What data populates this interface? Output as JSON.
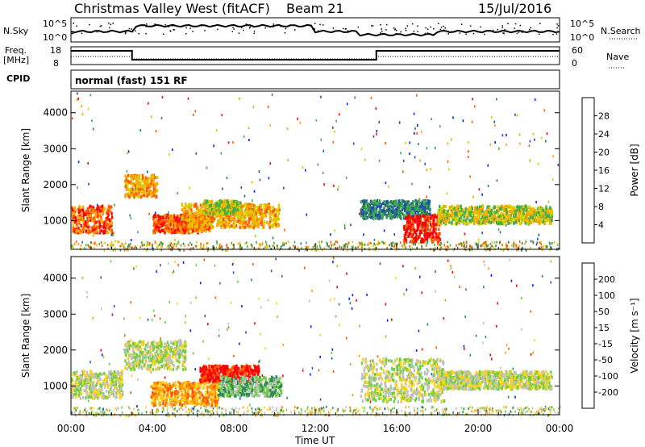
{
  "header": {
    "station": "Christmas Valley West (fitACF)",
    "beam": "Beam 21",
    "date": "15/Jul/2016"
  },
  "panels": {
    "nsky_label": "N.Sky",
    "nsky_ticks": [
      "10^5",
      "10^0"
    ],
    "nsearch_label": "N.Search",
    "nsearch_ticks": [
      "10^5",
      "10^0"
    ],
    "freq_label_line1": "Freq.",
    "freq_label_line2": "[MHz]",
    "freq_ticks": [
      "18",
      "8"
    ],
    "nave_label": "Nave",
    "nave_ticks": [
      "60",
      "0"
    ],
    "cpid_label": "CPID",
    "cpid_text": "normal (fast) 151 RF"
  },
  "chart_data": [
    {
      "type": "heatmap",
      "name": "power",
      "ylabel": "Slant Range [km]",
      "yticks": [
        "1000",
        "2000",
        "3000",
        "4000"
      ],
      "ylim": [
        200,
        4600
      ],
      "colorbar_label": "Power [dB]",
      "colorbar_ticks": [
        "4",
        "8",
        "12",
        "16",
        "20",
        "24",
        "28"
      ],
      "colors": [
        "#0022ff",
        "#1e4fb0",
        "#2d7d58",
        "#3fae4b",
        "#d2d200",
        "#ffa500",
        "#ff5a00",
        "#ff0000"
      ],
      "features": [
        {
          "t0": 0.0,
          "t1": 2.0,
          "r0": 700,
          "r1": 1450,
          "level": 6
        },
        {
          "t0": 2.6,
          "t1": 4.2,
          "r0": 1700,
          "r1": 2300,
          "level": 5
        },
        {
          "t0": 4.0,
          "t1": 6.8,
          "r0": 700,
          "r1": 1200,
          "level": 6
        },
        {
          "t0": 5.4,
          "t1": 10.2,
          "r0": 850,
          "r1": 1500,
          "level": 5
        },
        {
          "t0": 6.5,
          "t1": 8.3,
          "r0": 1200,
          "r1": 1600,
          "level": 4
        },
        {
          "t0": 14.2,
          "t1": 17.6,
          "r0": 1100,
          "r1": 1600,
          "level": 2
        },
        {
          "t0": 16.3,
          "t1": 18.1,
          "r0": 450,
          "r1": 1200,
          "level": 7
        },
        {
          "t0": 18.0,
          "t1": 23.6,
          "r0": 950,
          "r1": 1450,
          "level": 4
        }
      ]
    },
    {
      "type": "heatmap",
      "name": "velocity",
      "ylabel": "Slant Range [km]",
      "yticks": [
        "1000",
        "2000",
        "3000",
        "4000"
      ],
      "ylim": [
        200,
        4600
      ],
      "xlabel": "Time UT",
      "xticks": [
        "00:00",
        "04:00",
        "08:00",
        "12:00",
        "16:00",
        "20:00",
        "00:00"
      ],
      "xlim_hours": [
        0,
        24
      ],
      "colorbar_label": "Velocity [m s⁻¹]",
      "colorbar_ticks": [
        "200",
        "100",
        "50",
        "15",
        "-15",
        "-50",
        "-100",
        "-200"
      ],
      "colors": [
        "#0022ff",
        "#2f53c0",
        "#2d8a55",
        "#6cd13c",
        "#c0c0c0",
        "#ffd11a",
        "#ff9a00",
        "#ff5a00",
        "#ff0000"
      ],
      "features": [
        {
          "t0": 0.0,
          "t1": 2.5,
          "r0": 700,
          "r1": 1450,
          "level": 4
        },
        {
          "t0": 2.6,
          "t1": 5.6,
          "r0": 1500,
          "r1": 2300,
          "level": 4
        },
        {
          "t0": 3.9,
          "t1": 7.2,
          "r0": 500,
          "r1": 1150,
          "level": 6
        },
        {
          "t0": 6.3,
          "t1": 9.2,
          "r0": 1150,
          "r1": 1600,
          "level": 8
        },
        {
          "t0": 7.2,
          "t1": 10.3,
          "r0": 750,
          "r1": 1300,
          "level": 3
        },
        {
          "t0": 14.2,
          "t1": 18.3,
          "r0": 600,
          "r1": 1800,
          "level": 4
        },
        {
          "t0": 18.0,
          "t1": 23.6,
          "r0": 950,
          "r1": 1450,
          "level": 4
        }
      ]
    }
  ],
  "freq_trace": {
    "segments": [
      {
        "t0": 0,
        "t1": 3.0,
        "high": true
      },
      {
        "t0": 3.0,
        "t1": 15.0,
        "high": false
      },
      {
        "t0": 15.0,
        "t1": 24,
        "high": true
      }
    ]
  }
}
